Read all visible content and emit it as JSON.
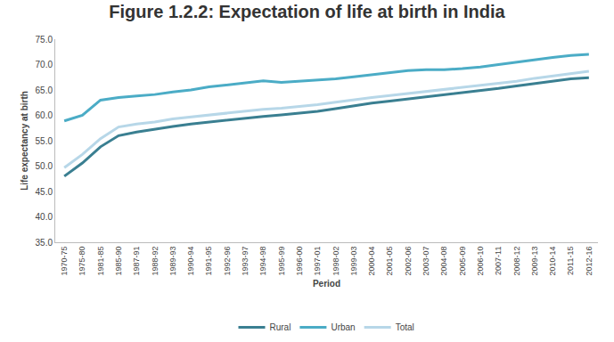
{
  "chart_data": {
    "type": "line",
    "title": "Figure 1.2.2: Expectation of life at birth in India",
    "x_label": "Period",
    "y_label": "Life expectancy at birth",
    "categories": [
      "1970-75",
      "1975-80",
      "1981-85",
      "1985-90",
      "1987-91",
      "1988-92",
      "1989-93",
      "1990-94",
      "1991-95",
      "1992-96",
      "1993-97",
      "1994-98",
      "1995-99",
      "1996-00",
      "1997-01",
      "1998-02",
      "1999-03",
      "2000-04",
      "2001-05",
      "2002-06",
      "2003-07",
      "2004-08",
      "2005-09",
      "2006-10",
      "2007-11",
      "2008-12",
      "2009-13",
      "2010-14",
      "2011-15",
      "2012-16"
    ],
    "series": [
      {
        "name": "Rural",
        "color": "#3a7f91",
        "values": [
          48.0,
          50.6,
          53.8,
          56.0,
          56.7,
          57.3,
          57.8,
          58.3,
          58.7,
          59.0,
          59.5,
          59.8,
          60.1,
          60.4,
          60.8,
          61.3,
          61.9,
          62.4,
          62.8,
          63.2,
          63.6,
          64.0,
          64.4,
          64.8,
          65.3,
          65.8,
          66.3,
          66.8,
          67.2,
          67.4
        ]
      },
      {
        "name": "Urban",
        "color": "#4bacc6",
        "values": [
          58.9,
          60.0,
          63.0,
          63.5,
          63.8,
          64.1,
          64.6,
          65.0,
          65.6,
          66.0,
          66.3,
          66.8,
          66.5,
          66.7,
          67.0,
          67.2,
          67.6,
          68.0,
          68.4,
          68.8,
          69.0,
          69.0,
          69.2,
          69.5,
          70.0,
          70.5,
          71.0,
          71.4,
          71.8,
          72.0
        ]
      },
      {
        "name": "Total",
        "color": "#b7d7e8",
        "values": [
          49.7,
          52.3,
          55.4,
          57.7,
          58.3,
          58.7,
          59.3,
          59.7,
          60.1,
          60.5,
          60.9,
          61.2,
          61.4,
          61.7,
          62.1,
          62.6,
          63.1,
          63.5,
          63.9,
          64.3,
          64.7,
          65.1,
          65.5,
          65.8,
          66.2,
          66.7,
          67.3,
          67.8,
          68.3,
          68.7
        ]
      }
    ],
    "ylim": [
      35,
      75
    ],
    "yticks": [
      {
        "value": 35,
        "label": "35.0"
      },
      {
        "value": 40,
        "label": "40.0"
      },
      {
        "value": 45,
        "label": "45.0"
      },
      {
        "value": 50,
        "label": "50.0"
      },
      {
        "value": 55,
        "label": "55.0"
      },
      {
        "value": 60,
        "label": "60.0"
      },
      {
        "value": 65,
        "label": "65.0"
      },
      {
        "value": 70,
        "label": "70.0"
      },
      {
        "value": 75,
        "label": "75.0"
      }
    ],
    "grid": false,
    "legend": "bottom"
  }
}
